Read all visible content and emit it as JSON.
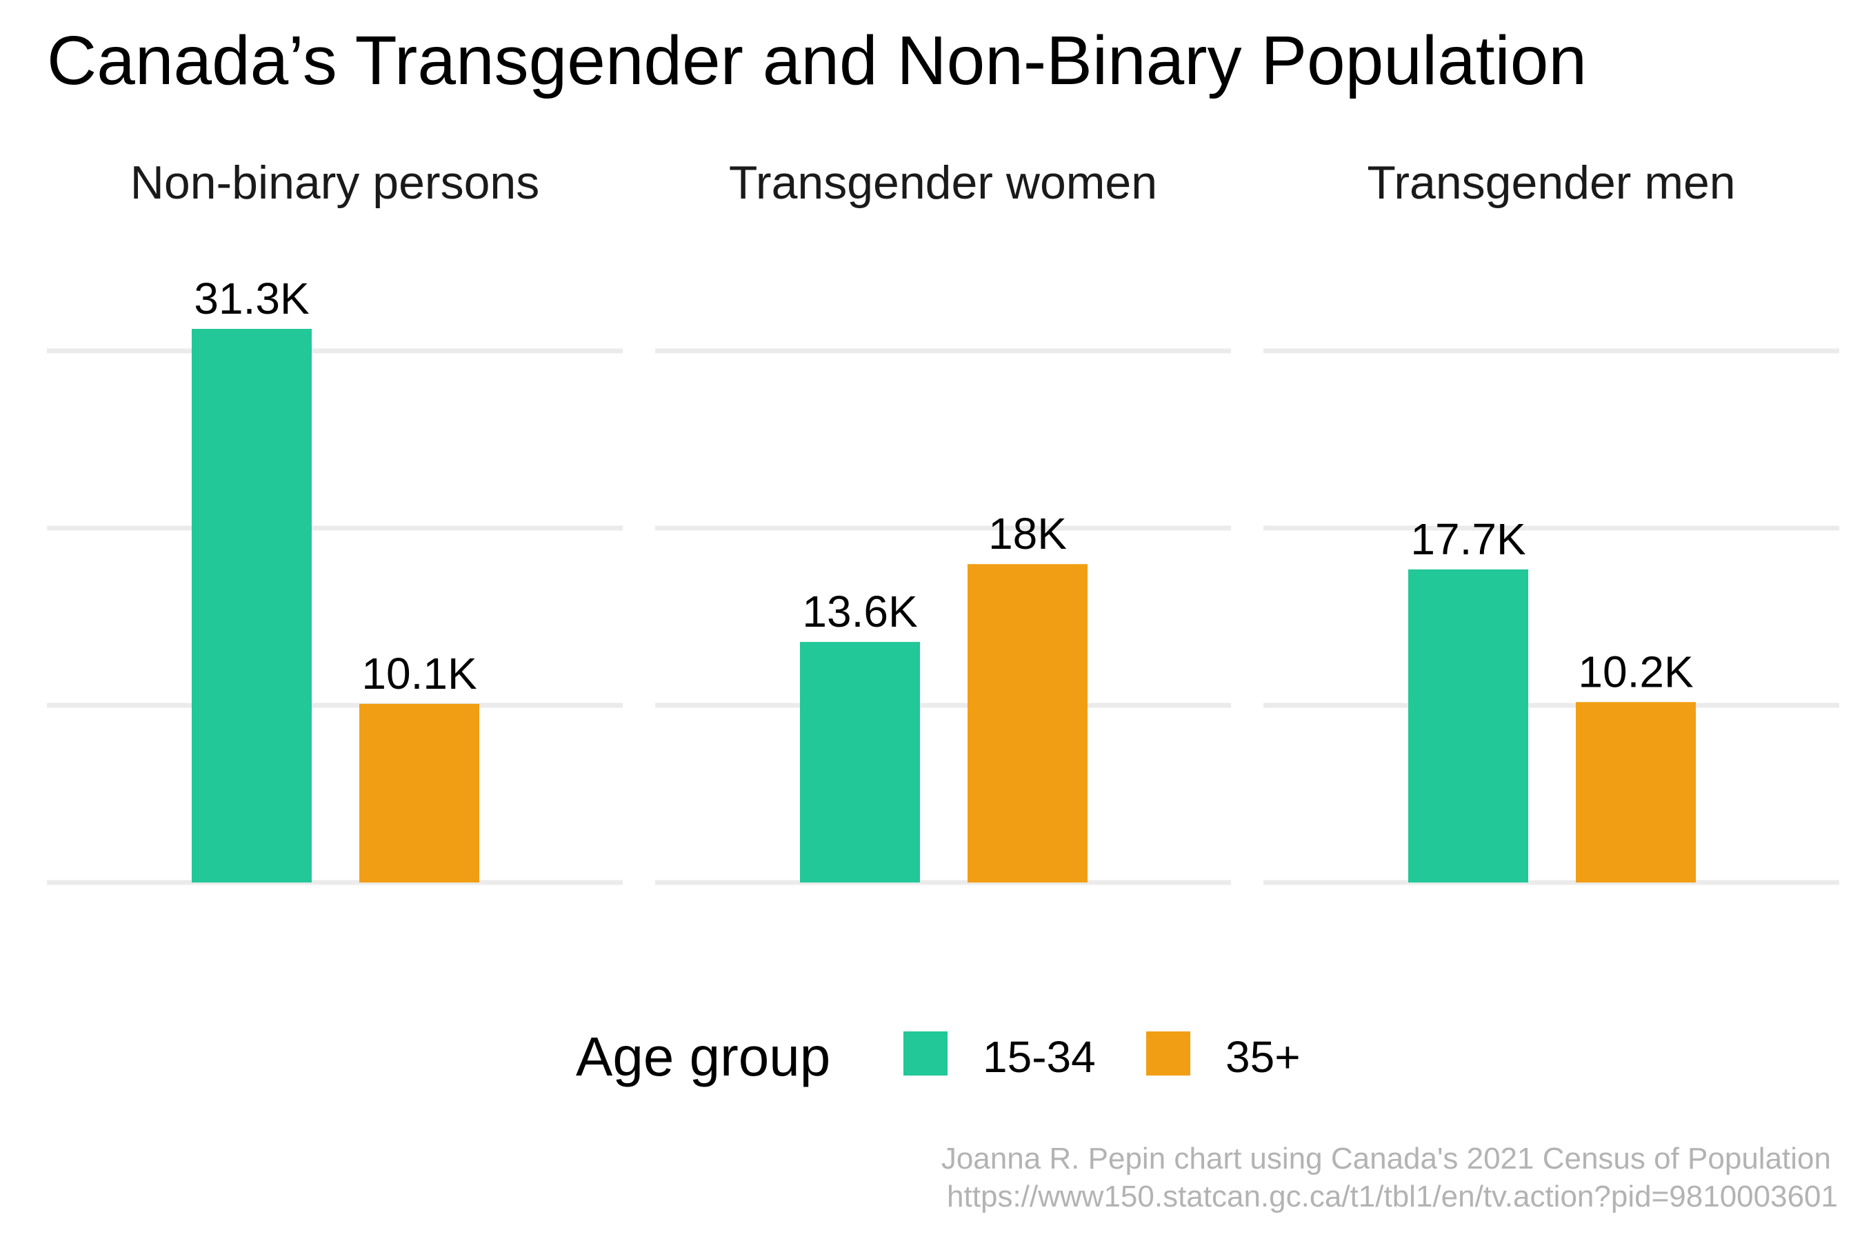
{
  "chart_data": {
    "type": "bar",
    "title": "Canada’s Transgender and Non-Binary Population",
    "facets": [
      "Non-binary persons",
      "Transgender women",
      "Transgender men"
    ],
    "series": [
      {
        "name": "15-34",
        "color": "#22C897",
        "values": [
          31300,
          13600,
          17700
        ],
        "labels": [
          "31.3K",
          "13.6K",
          "17.7K"
        ]
      },
      {
        "name": "35+",
        "color": "#F29E14",
        "values": [
          10100,
          18000,
          10200
        ],
        "labels": [
          "10.1K",
          "18K",
          "10.2K"
        ]
      }
    ],
    "ylim": [
      0,
      31300
    ],
    "grid": true,
    "legend": {
      "title": "Age group",
      "placement": "bottom"
    },
    "caption": [
      "Joanna R. Pepin chart using Canada's 2021 Census of Population",
      "https://www150.statcan.gc.ca/t1/tbl1/en/tv.action?pid=9810003601"
    ]
  }
}
